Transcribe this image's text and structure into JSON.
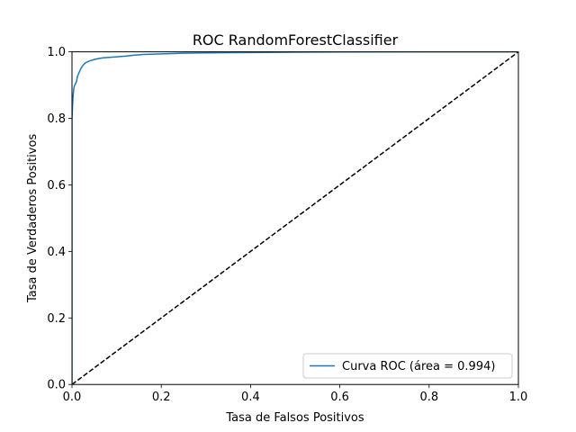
{
  "chart_data": {
    "type": "line",
    "title": "ROC RandomForestClassifier",
    "xlabel": "Tasa de Falsos Positivos",
    "ylabel": "Tasa de Verdaderos Positivos",
    "xlim": [
      0.0,
      1.0
    ],
    "ylim": [
      0.0,
      1.0
    ],
    "xticks": [
      "0.0",
      "0.2",
      "0.4",
      "0.6",
      "0.8",
      "1.0"
    ],
    "yticks": [
      "0.0",
      "0.2",
      "0.4",
      "0.6",
      "0.8",
      "1.0"
    ],
    "grid": false,
    "legend_position": "bottom-right",
    "series": [
      {
        "name": "Curva ROC (área = 0.994)",
        "color": "#1f77b4",
        "style": "solid",
        "x": [
          0.0,
          0.0,
          0.002,
          0.004,
          0.006,
          0.008,
          0.01,
          0.012,
          0.015,
          0.02,
          0.025,
          0.03,
          0.04,
          0.05,
          0.06,
          0.07,
          0.08,
          0.1,
          0.12,
          0.14,
          0.16,
          0.2,
          0.25,
          0.3,
          0.4,
          0.5,
          0.6,
          0.8,
          1.0
        ],
        "y": [
          0.0,
          0.8,
          0.86,
          0.89,
          0.9,
          0.905,
          0.91,
          0.925,
          0.935,
          0.95,
          0.96,
          0.967,
          0.973,
          0.977,
          0.98,
          0.982,
          0.983,
          0.985,
          0.987,
          0.99,
          0.992,
          0.994,
          0.996,
          0.997,
          0.998,
          0.999,
          0.9995,
          1.0,
          1.0
        ]
      },
      {
        "name": "",
        "color": "#000000",
        "style": "dashed",
        "x": [
          0.0,
          1.0
        ],
        "y": [
          0.0,
          1.0
        ]
      }
    ]
  }
}
